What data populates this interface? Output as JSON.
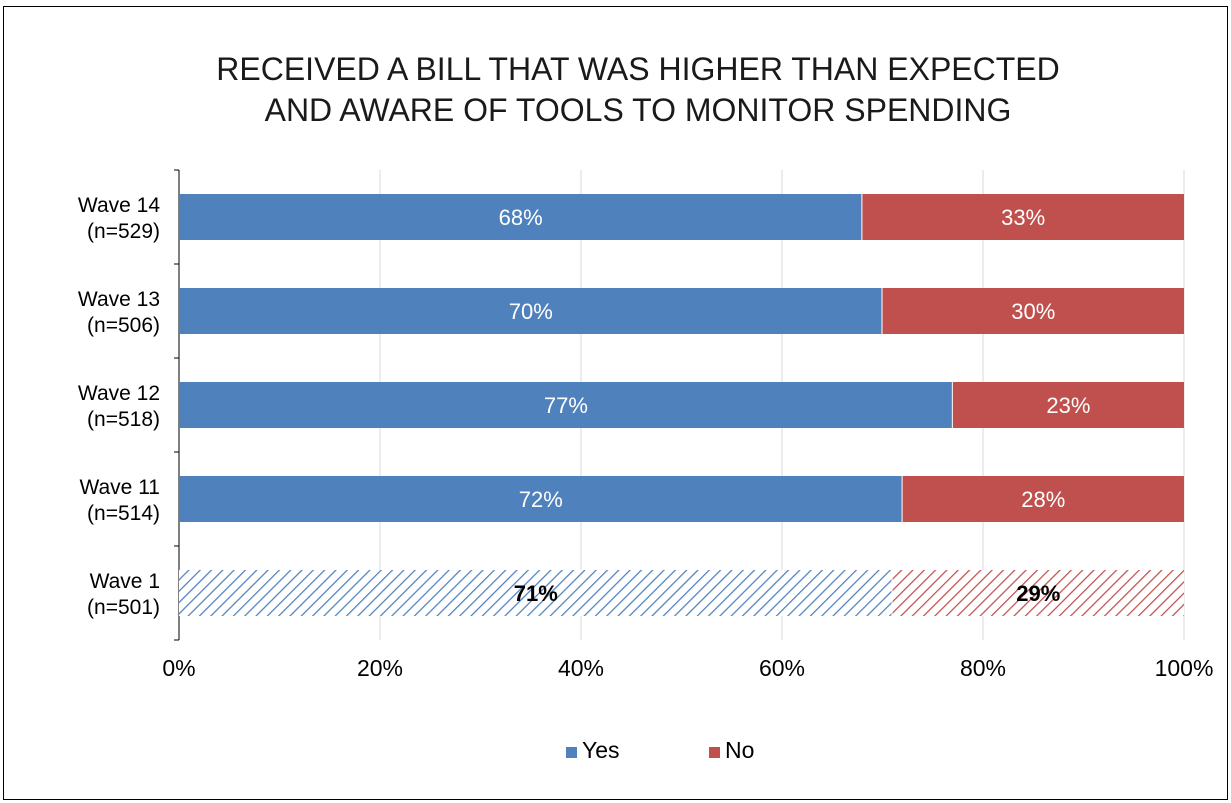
{
  "chart_data": {
    "type": "bar",
    "stacked": true,
    "orientation": "horizontal",
    "title": [
      "RECEIVED A BILL THAT WAS HIGHER THAN EXPECTED",
      "AND  AWARE OF TOOLS TO MONITOR SPENDING"
    ],
    "categories": [
      [
        "Wave 14",
        "(n=529)"
      ],
      [
        "Wave 13",
        "(n=506)"
      ],
      [
        "Wave 12",
        "(n=518)"
      ],
      [
        "Wave 11",
        "(n=514)"
      ],
      [
        "Wave 1",
        "(n=501)"
      ]
    ],
    "series": [
      {
        "name": "Yes",
        "color": "#4f81bd",
        "values": [
          68,
          70,
          77,
          72,
          71
        ],
        "labels": [
          "68%",
          "70%",
          "77%",
          "72%",
          "71%"
        ]
      },
      {
        "name": "No",
        "color": "#c0504d",
        "values": [
          33,
          30,
          23,
          28,
          29
        ],
        "labels": [
          "33%",
          "30%",
          "23%",
          "28%",
          "29%"
        ]
      }
    ],
    "hatched_category": "Wave 1",
    "xlim": [
      0,
      100
    ],
    "xticks": [
      "0%",
      "20%",
      "40%",
      "60%",
      "80%",
      "100%"
    ],
    "grid": true,
    "legend_position": "bottom"
  }
}
